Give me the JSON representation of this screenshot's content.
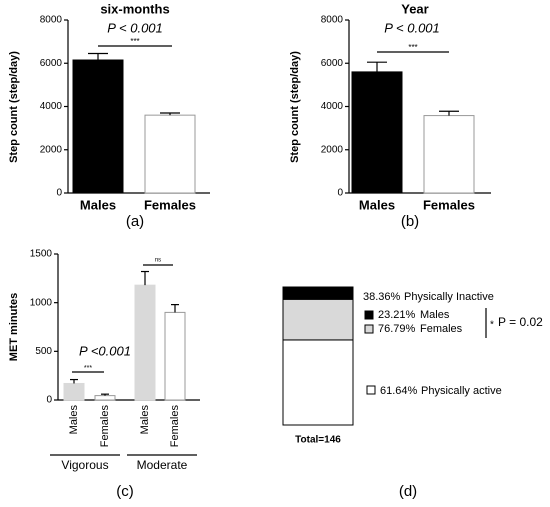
{
  "chart_data": [
    {
      "type": "bar",
      "title": "six-months",
      "caption": "(a)",
      "ylabel": "Step count (step/day)",
      "categories": [
        "Males",
        "Females"
      ],
      "values": [
        6150,
        3600
      ],
      "errors": [
        300,
        100
      ],
      "colors": [
        "#000000",
        "#ffffff"
      ],
      "ylim": [
        0,
        8000
      ],
      "yticks": [
        0,
        2000,
        4000,
        6000,
        8000
      ],
      "annotations": [
        "P < 0.001",
        "***"
      ]
    },
    {
      "type": "bar",
      "title": "Year",
      "caption": "(b)",
      "ylabel": "Step count (step/day)",
      "categories": [
        "Males",
        "Females"
      ],
      "values": [
        5600,
        3580
      ],
      "errors": [
        450,
        200
      ],
      "colors": [
        "#000000",
        "#ffffff"
      ],
      "ylim": [
        0,
        8000
      ],
      "yticks": [
        0,
        2000,
        4000,
        6000,
        8000
      ],
      "annotations": [
        "P < 0.001",
        "***"
      ]
    },
    {
      "type": "grouped_bar",
      "caption": "(c)",
      "ylabel": "MET minutes",
      "groups": [
        "Vigorous",
        "Moderate"
      ],
      "categories": [
        "Males",
        "Females"
      ],
      "values": [
        [
          170,
          45
        ],
        [
          1180,
          900
        ]
      ],
      "errors": [
        [
          40,
          15
        ],
        [
          140,
          80
        ]
      ],
      "colors": [
        "#d9d9d9",
        "#ffffff"
      ],
      "ylim": [
        0,
        1500
      ],
      "yticks": [
        0,
        500,
        1000,
        1500
      ],
      "annotations": [
        "P <0.001",
        "***",
        "ns"
      ]
    },
    {
      "type": "stacked_bar",
      "caption": "(d)",
      "total_label": "Total=146",
      "segments": [
        {
          "name": "Physically active",
          "value": 61.64,
          "value_label": "61.64%",
          "color": "#ffffff"
        },
        {
          "name": "Physically Inactive",
          "value": 38.36,
          "value_label": "38.36%",
          "split": [
            {
              "name": "Males",
              "value": 23.21,
              "value_label": "23.21%",
              "color": "#000000"
            },
            {
              "name": "Females",
              "value": 76.79,
              "value_label": "76.79%",
              "color": "#d9d9d9"
            }
          ]
        }
      ],
      "annotations": [
        "*",
        "P = 0.02"
      ]
    }
  ]
}
